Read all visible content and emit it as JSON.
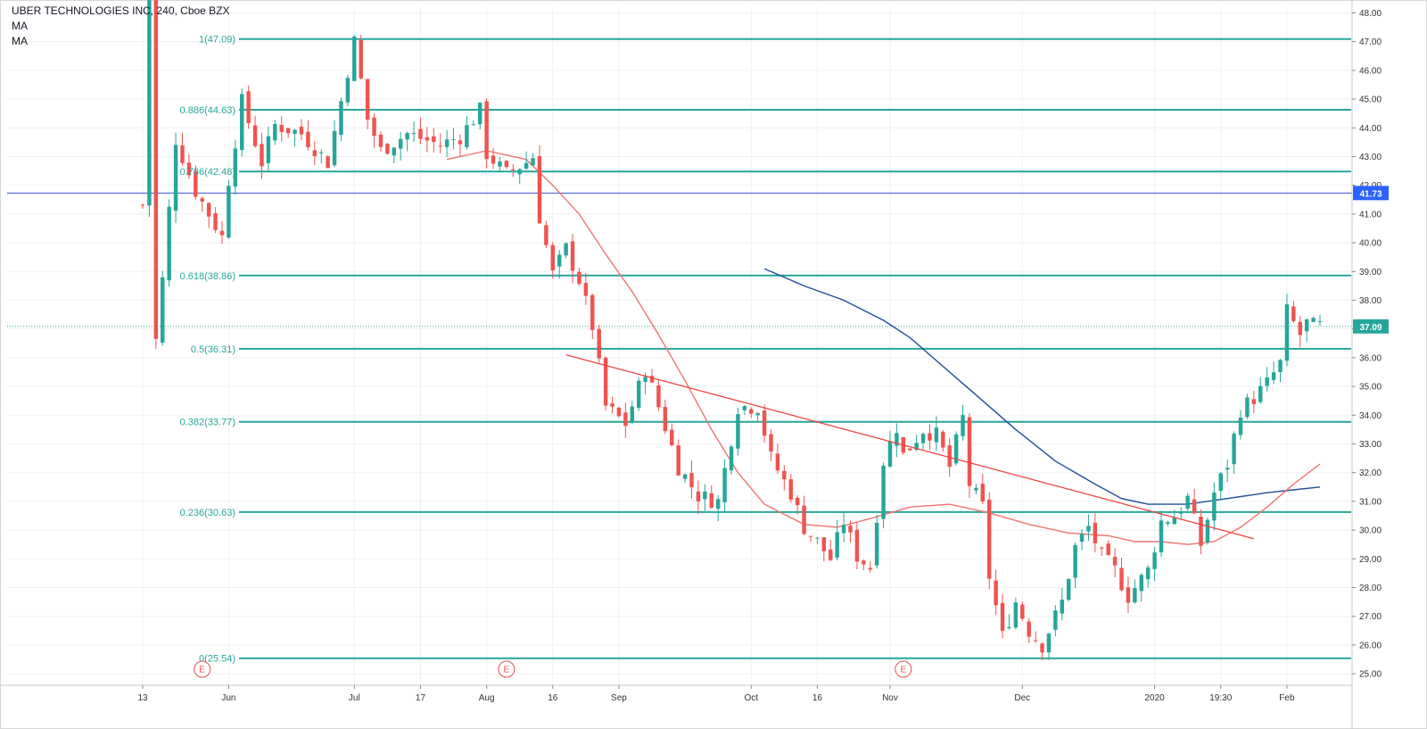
{
  "header": {
    "title": "UBER TECHNOLOGIES INC, 240, Cboe BZX",
    "indicator1": "MA",
    "indicator2": "MA"
  },
  "colors": {
    "up": "#26a69a",
    "down": "#ef5350",
    "fib": "#26a69a",
    "ma_fast": "#f07470",
    "ma_slow": "#1f4e9a",
    "trendline": "#ef3b36",
    "hline": "#3f51d6",
    "price_badge": "#26a69a",
    "hline_badge": "#2962ff",
    "grid": "#eef1f5"
  },
  "chart_data": {
    "type": "candlestick",
    "symbol": "UBER TECHNOLOGIES INC",
    "interval": "240",
    "exchange": "Cboe BZX",
    "ylim": [
      24.6,
      48.2
    ],
    "y_ticks": [
      "25.00",
      "26.00",
      "27.00",
      "28.00",
      "29.00",
      "30.00",
      "31.00",
      "32.00",
      "33.00",
      "34.00",
      "35.00",
      "36.00",
      "37.00",
      "38.00",
      "39.00",
      "40.00",
      "41.00",
      "42.00",
      "43.00",
      "44.00",
      "45.00",
      "46.00",
      "47.00",
      "48.00"
    ],
    "x_ticks": [
      {
        "label": "13",
        "idx": 0
      },
      {
        "label": "Jun",
        "idx": 13
      },
      {
        "label": "Jul",
        "idx": 32
      },
      {
        "label": "17",
        "idx": 42
      },
      {
        "label": "Aug",
        "idx": 52
      },
      {
        "label": "16",
        "idx": 62
      },
      {
        "label": "Sep",
        "idx": 72
      },
      {
        "label": "Oct",
        "idx": 92
      },
      {
        "label": "16",
        "idx": 102
      },
      {
        "label": "Nov",
        "idx": 113
      },
      {
        "label": "Dec",
        "idx": 133
      },
      {
        "label": "2020",
        "idx": 153
      },
      {
        "label": "19:30",
        "idx": 163
      },
      {
        "label": "Feb",
        "idx": 173
      }
    ],
    "candles_count": 179,
    "anchors": [
      [
        0,
        41.3
      ],
      [
        1,
        48.8
      ],
      [
        2,
        36.6
      ],
      [
        3,
        38.7
      ],
      [
        5,
        43.6
      ],
      [
        8,
        41.8
      ],
      [
        12,
        40.2
      ],
      [
        13,
        42.2
      ],
      [
        15,
        44.9
      ],
      [
        18,
        42.8
      ],
      [
        20,
        44.1
      ],
      [
        24,
        43.8
      ],
      [
        28,
        42.8
      ],
      [
        31,
        46.0
      ],
      [
        32,
        47.0
      ],
      [
        34,
        44.3
      ],
      [
        36,
        43.2
      ],
      [
        40,
        43.8
      ],
      [
        45,
        43.4
      ],
      [
        48,
        43.7
      ],
      [
        51,
        44.6
      ],
      [
        52,
        43.1
      ],
      [
        55,
        42.4
      ],
      [
        58,
        42.8
      ],
      [
        59,
        43.0
      ],
      [
        60,
        40.9
      ],
      [
        62,
        38.9
      ],
      [
        64,
        39.8
      ],
      [
        66,
        38.7
      ],
      [
        68,
        37.1
      ],
      [
        70,
        34.3
      ],
      [
        73,
        33.7
      ],
      [
        76,
        35.6
      ],
      [
        78,
        34.3
      ],
      [
        81,
        32.2
      ],
      [
        84,
        31.2
      ],
      [
        87,
        31.0
      ],
      [
        90,
        34.3
      ],
      [
        93,
        34.3
      ],
      [
        95,
        32.5
      ],
      [
        98,
        31.3
      ],
      [
        100,
        30.1
      ],
      [
        102,
        29.6
      ],
      [
        104,
        29.0
      ],
      [
        106,
        30.3
      ],
      [
        108,
        29.1
      ],
      [
        110,
        28.7
      ],
      [
        112,
        32.4
      ],
      [
        114,
        33.6
      ],
      [
        115,
        32.6
      ],
      [
        118,
        33.5
      ],
      [
        120,
        33.3
      ],
      [
        122,
        32.2
      ],
      [
        124,
        33.9
      ],
      [
        125,
        31.6
      ],
      [
        127,
        30.8
      ],
      [
        128,
        28.4
      ],
      [
        130,
        26.3
      ],
      [
        132,
        27.5
      ],
      [
        134,
        26.5
      ],
      [
        136,
        26.0
      ],
      [
        139,
        27.5
      ],
      [
        141,
        29.4
      ],
      [
        143,
        30.1
      ],
      [
        145,
        29.1
      ],
      [
        147,
        28.6
      ],
      [
        149,
        27.7
      ],
      [
        152,
        28.6
      ],
      [
        154,
        30.3
      ],
      [
        156,
        30.5
      ],
      [
        158,
        31.1
      ],
      [
        160,
        29.5
      ],
      [
        162,
        31.3
      ],
      [
        164,
        32.3
      ],
      [
        166,
        34.2
      ],
      [
        168,
        34.6
      ],
      [
        170,
        35.1
      ],
      [
        172,
        35.8
      ],
      [
        173,
        37.6
      ],
      [
        175,
        36.8
      ],
      [
        176,
        37.2
      ],
      [
        177,
        37.1
      ],
      [
        178,
        37.1
      ]
    ],
    "fibonacci": [
      {
        "ratio": "1",
        "price": 47.09,
        "label": "1(47.09)"
      },
      {
        "ratio": "0.886",
        "price": 44.63,
        "label": "0.886(44.63)"
      },
      {
        "ratio": "0.786",
        "price": 42.48,
        "label": "0.786(42.48)"
      },
      {
        "ratio": "0.618",
        "price": 38.86,
        "label": "0.618(38.86)"
      },
      {
        "ratio": "0.5",
        "price": 36.31,
        "label": "0.5(36.31)"
      },
      {
        "ratio": "0.382",
        "price": 33.77,
        "label": "0.382(33.77)"
      },
      {
        "ratio": "0.236",
        "price": 30.63,
        "label": "0.236(30.63)"
      },
      {
        "ratio": "0",
        "price": 25.54,
        "label": "0(25.54)"
      }
    ],
    "horizontal_line": {
      "price": 41.73,
      "label": "41.73"
    },
    "last_price": {
      "price": 37.09,
      "label": "37.09"
    },
    "trendline": {
      "start_idx": 64,
      "start_price": 36.1,
      "end_idx": 168,
      "end_price": 29.7
    },
    "ma_fast": [
      [
        46,
        42.9
      ],
      [
        52,
        43.2
      ],
      [
        58,
        42.9
      ],
      [
        62,
        42.0
      ],
      [
        66,
        41.0
      ],
      [
        70,
        39.6
      ],
      [
        74,
        38.3
      ],
      [
        78,
        36.8
      ],
      [
        82,
        35.2
      ],
      [
        86,
        33.5
      ],
      [
        90,
        32.0
      ],
      [
        94,
        30.9
      ],
      [
        100,
        30.2
      ],
      [
        105,
        30.1
      ],
      [
        110,
        30.4
      ],
      [
        116,
        30.8
      ],
      [
        122,
        30.9
      ],
      [
        128,
        30.6
      ],
      [
        134,
        30.2
      ],
      [
        140,
        29.9
      ],
      [
        146,
        29.8
      ],
      [
        150,
        29.6
      ],
      [
        154,
        29.6
      ],
      [
        158,
        29.5
      ],
      [
        162,
        29.6
      ],
      [
        166,
        30.1
      ],
      [
        170,
        30.8
      ],
      [
        174,
        31.6
      ],
      [
        178,
        32.3
      ]
    ],
    "ma_slow": [
      [
        94,
        39.1
      ],
      [
        100,
        38.5
      ],
      [
        106,
        38.0
      ],
      [
        112,
        37.3
      ],
      [
        116,
        36.7
      ],
      [
        120,
        35.9
      ],
      [
        126,
        34.7
      ],
      [
        132,
        33.5
      ],
      [
        138,
        32.4
      ],
      [
        144,
        31.6
      ],
      [
        148,
        31.1
      ],
      [
        152,
        30.9
      ],
      [
        158,
        30.9
      ],
      [
        164,
        31.1
      ],
      [
        170,
        31.3
      ],
      [
        174,
        31.4
      ],
      [
        178,
        31.5
      ]
    ],
    "earnings_markers": [
      {
        "idx": 9,
        "label": "E"
      },
      {
        "idx": 55,
        "label": "E"
      },
      {
        "idx": 115,
        "label": "E"
      }
    ]
  }
}
